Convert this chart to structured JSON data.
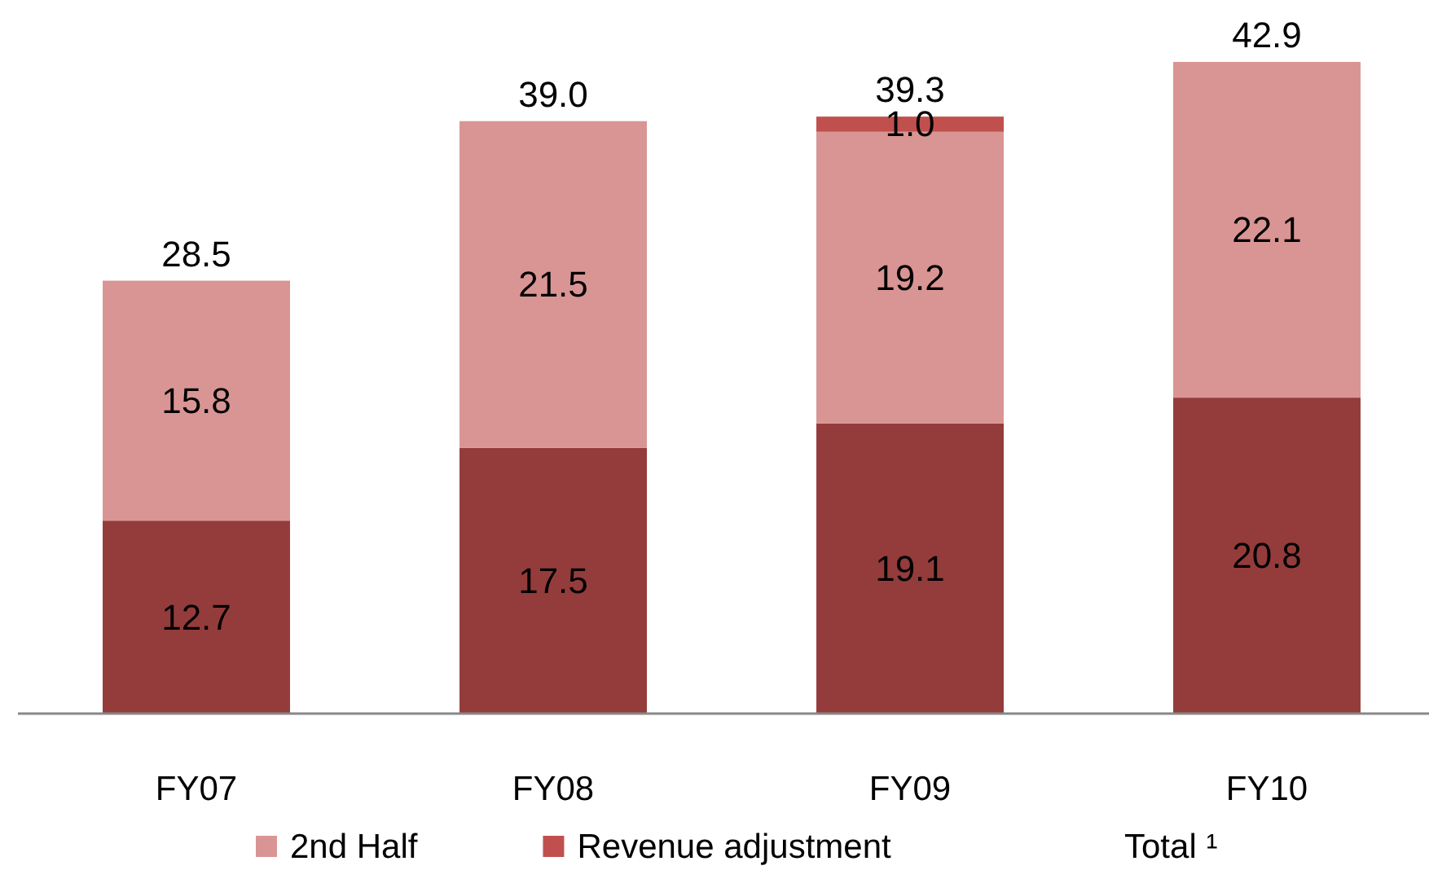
{
  "chart_data": {
    "type": "bar",
    "stacked": true,
    "categories": [
      "FY07",
      "FY08",
      "FY09",
      "FY10"
    ],
    "series": [
      {
        "color": "#943c3b",
        "values": [
          12.7,
          17.5,
          19.1,
          20.8
        ],
        "value_labels": [
          "12.7",
          "17.5",
          "19.1",
          "20.8"
        ]
      },
      {
        "name": "2nd Half",
        "color": "#d99594",
        "values": [
          15.8,
          21.5,
          19.2,
          22.1
        ],
        "value_labels": [
          "15.8",
          "21.5",
          "19.2",
          "22.1"
        ]
      },
      {
        "name": "Revenue adjustment",
        "color": "#c0504d",
        "values": [
          null,
          null,
          1.0,
          null
        ],
        "value_labels": [
          null,
          null,
          "1.0",
          null
        ]
      }
    ],
    "totals": [
      "28.5",
      "39.0",
      "39.3",
      "42.9"
    ],
    "legend": "bottom",
    "annotations": [
      "Total ¹"
    ]
  }
}
